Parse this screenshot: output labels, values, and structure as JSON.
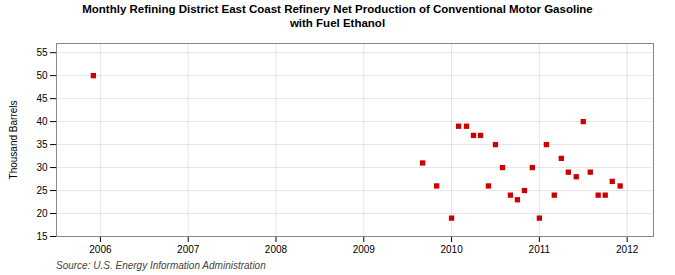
{
  "chart_data": {
    "type": "scatter",
    "title": "Monthly Refining District East Coast Refinery Net Production of Conventional Motor Gasoline\nwith Fuel Ethanol",
    "ylabel": "Thousand Barrels",
    "annotations": [
      "Source: U.S. Energy Information Administration"
    ],
    "x": [
      2005.92,
      2009.67,
      2009.83,
      2010.0,
      2010.08,
      2010.17,
      2010.25,
      2010.33,
      2010.42,
      2010.5,
      2010.58,
      2010.67,
      2010.75,
      2010.83,
      2010.92,
      2011.0,
      2011.08,
      2011.17,
      2011.25,
      2011.33,
      2011.42,
      2011.5,
      2011.58,
      2011.67,
      2011.75,
      2011.83,
      2011.92
    ],
    "values": [
      50,
      31,
      26,
      19,
      39,
      39,
      37,
      37,
      26,
      35,
      30,
      24,
      23,
      25,
      30,
      19,
      35,
      24,
      32,
      29,
      28,
      40,
      29,
      24,
      24,
      27,
      26
    ],
    "color": "#cc0000",
    "marker": "square",
    "xlim": [
      2005.5,
      2012.3
    ],
    "xticks": [
      2006,
      2007,
      2008,
      2009,
      2010,
      2011,
      2012
    ],
    "ylim": [
      15,
      57
    ],
    "yticks": [
      15,
      20,
      25,
      30,
      35,
      40,
      45,
      50,
      55
    ],
    "grid": true
  }
}
